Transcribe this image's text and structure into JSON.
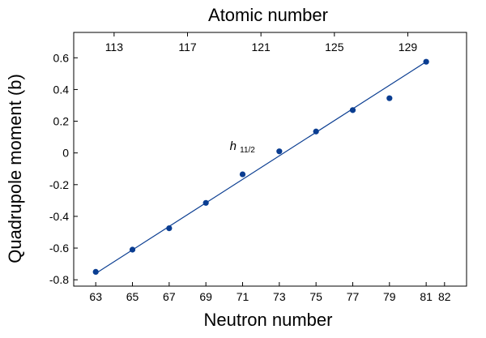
{
  "chart_data": {
    "type": "scatter",
    "xlabel": "Neutron number",
    "ylabel": "Quadrupole moment (b)",
    "x2label": "Atomic number",
    "xlim": [
      61.8,
      83.2
    ],
    "ylim": [
      -0.84,
      0.76
    ],
    "x_ticks": [
      63,
      65,
      67,
      69,
      71,
      73,
      75,
      77,
      79,
      81,
      82
    ],
    "x_tick_labels": [
      "63",
      "65",
      "67",
      "69",
      "71",
      "73",
      "75",
      "77",
      "79",
      "81",
      "82"
    ],
    "highlight_tick": {
      "value": 82,
      "color": "#e31a1c"
    },
    "top_ticks": [
      64,
      68,
      72,
      76,
      80
    ],
    "top_tick_labels": [
      "113",
      "117",
      "121",
      "125",
      "129"
    ],
    "y_ticks": [
      -0.8,
      -0.6,
      -0.4,
      -0.2,
      0,
      0.2,
      0.4,
      0.6
    ],
    "y_tick_labels": [
      "-0.8",
      "-0.6",
      "-0.4",
      "-0.2",
      "0",
      "0.2",
      "0.4",
      "0.6"
    ],
    "x": [
      63,
      65,
      67,
      69,
      71,
      73,
      75,
      77,
      79,
      81
    ],
    "y": [
      -0.75,
      -0.61,
      -0.475,
      -0.315,
      -0.135,
      0.01,
      0.135,
      0.27,
      0.345,
      0.575
    ],
    "fit_line": {
      "x": [
        63,
        81
      ],
      "y": [
        -0.76,
        0.575
      ]
    },
    "annotation": {
      "base": "h",
      "sub": "11/2",
      "x": 70.3,
      "y": 0.02
    },
    "colors": {
      "points": "#0a3d91",
      "line": "#0a3d91"
    },
    "grid": false,
    "legend": "none"
  }
}
